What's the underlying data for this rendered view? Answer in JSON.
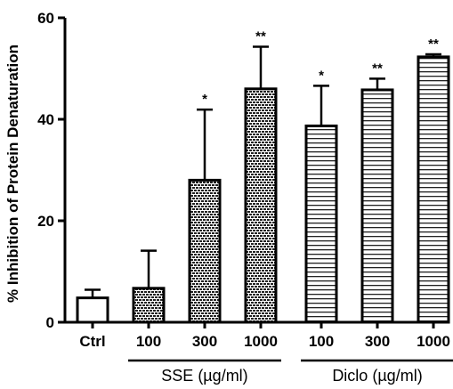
{
  "chart_data": {
    "type": "bar",
    "title": "",
    "xlabel": "",
    "ylabel": "% Inhibition of Protein Denaturation",
    "ylim": [
      0,
      60
    ],
    "yticks": [
      0,
      20,
      40,
      60
    ],
    "grid": false,
    "categories": [
      "Ctrl",
      "100",
      "300",
      "1000",
      "100",
      "300",
      "1000"
    ],
    "values": [
      4.8,
      6.7,
      28.0,
      46.0,
      38.7,
      45.8,
      52.3
    ],
    "errors": [
      1.6,
      7.4,
      13.9,
      8.3,
      7.9,
      2.2,
      0.5
    ],
    "significance": [
      "",
      "",
      "*",
      "**",
      "*",
      "**",
      "**"
    ],
    "patterns": [
      "none",
      "brick",
      "brick",
      "brick",
      "hlines",
      "hlines",
      "hlines"
    ],
    "groups": [
      {
        "label": "SSE (µg/ml)",
        "categories": [
          1,
          3
        ]
      },
      {
        "label": "Diclo (µg/ml)",
        "categories": [
          4,
          6
        ]
      }
    ]
  }
}
